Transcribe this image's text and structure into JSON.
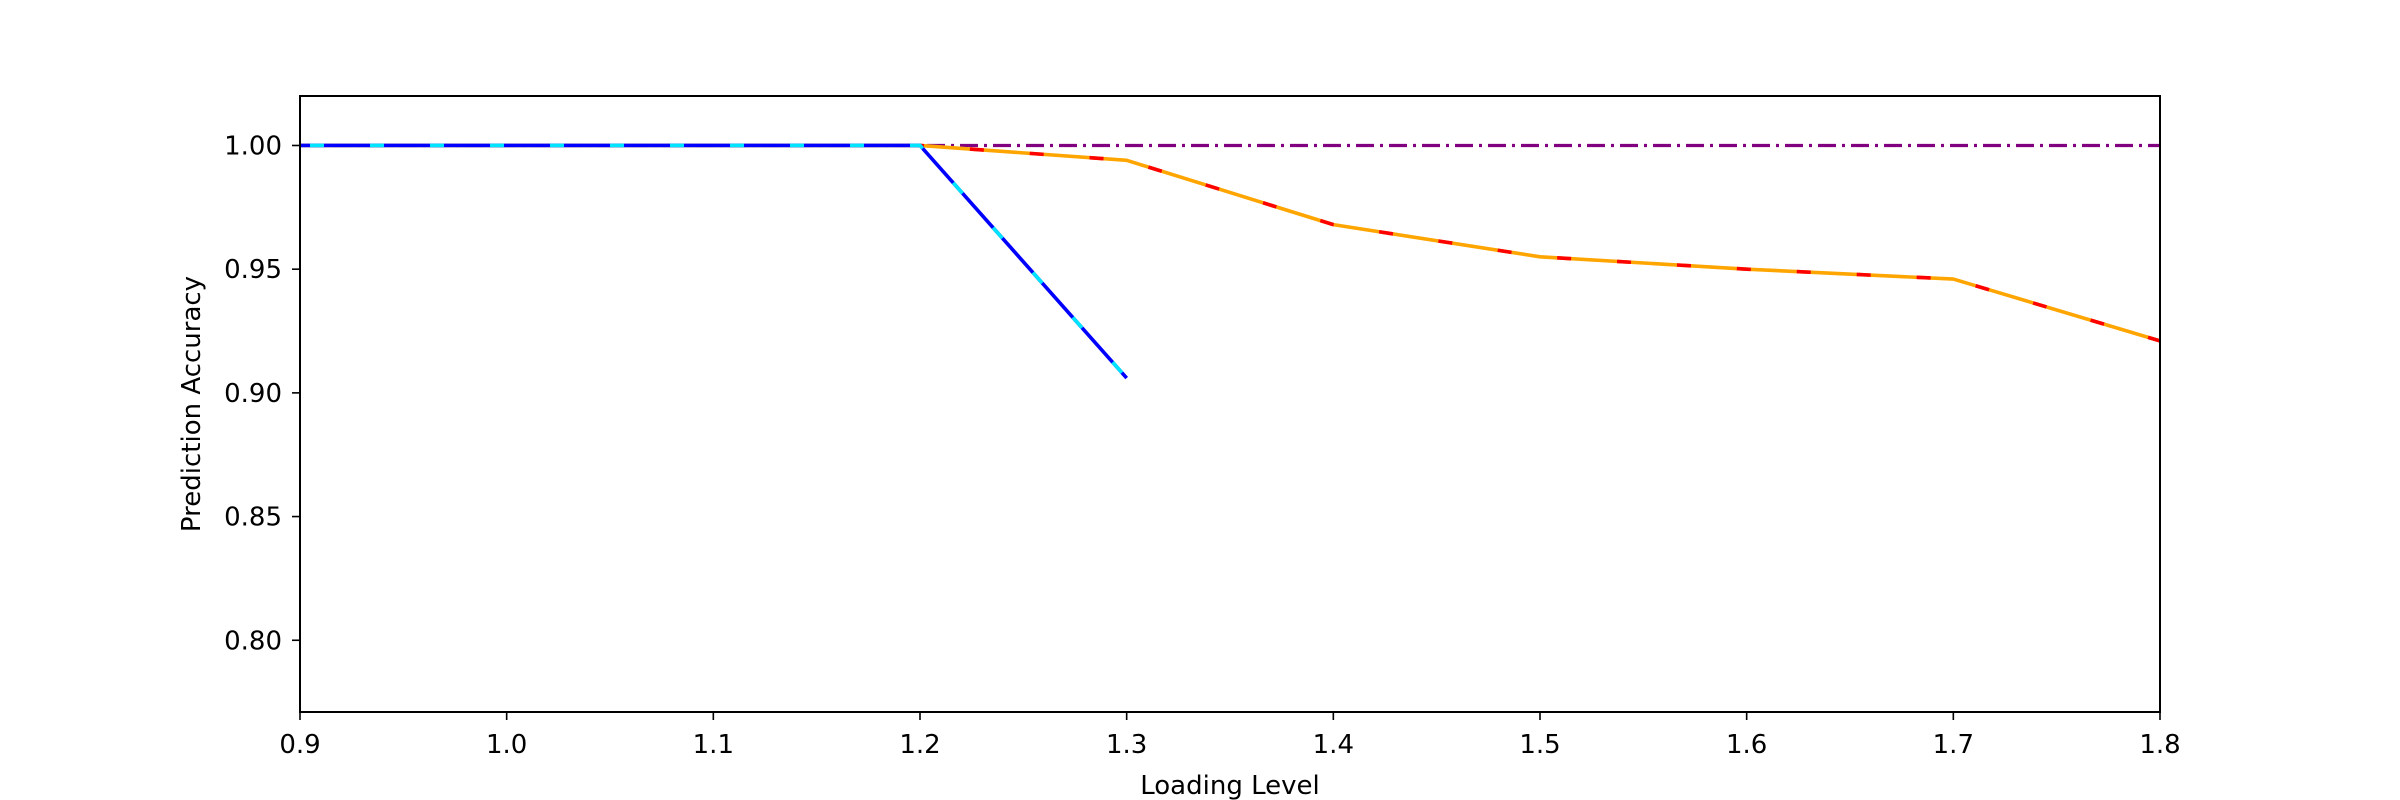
{
  "chart_data": {
    "type": "line",
    "xlabel": "Loading Level",
    "ylabel": "Prediction Accuracy",
    "xlim": [
      0.9,
      1.8
    ],
    "ylim": [
      0.771,
      1.02
    ],
    "xticks": [
      0.9,
      1.0,
      1.1,
      1.2,
      1.3,
      1.4,
      1.5,
      1.6,
      1.7,
      1.8
    ],
    "yticks": [
      0.8,
      0.85,
      0.9,
      0.95,
      1.0
    ],
    "xtick_labels": [
      "0.9",
      "1.0",
      "1.1",
      "1.2",
      "1.3",
      "1.4",
      "1.5",
      "1.6",
      "1.7",
      "1.8"
    ],
    "ytick_labels": [
      "0.80",
      "0.85",
      "0.90",
      "0.95",
      "1.00"
    ],
    "grid": false,
    "legend": "none",
    "series": [
      {
        "x": [
          0.9,
          1.8
        ],
        "y": [
          1.0,
          1.0
        ],
        "color": "#800080",
        "style": "dash-dot"
      },
      {
        "x": [
          0.9,
          1.0,
          1.1,
          1.2,
          1.3,
          1.4,
          1.5,
          1.6,
          1.7,
          1.8
        ],
        "y": [
          1.0,
          1.0,
          1.0,
          1.0,
          0.994,
          0.968,
          0.955,
          0.95,
          0.946,
          0.921
        ],
        "color": "#ffa500",
        "accent_color": "#ff0000",
        "style": "two-tone-dashed"
      },
      {
        "x": [
          0.9,
          1.0,
          1.1,
          1.2,
          1.3
        ],
        "y": [
          1.0,
          1.0,
          1.0,
          1.0,
          0.906
        ],
        "color": "#0000ff",
        "accent_color": "#00e5ff",
        "style": "two-tone-dashed"
      }
    ]
  }
}
